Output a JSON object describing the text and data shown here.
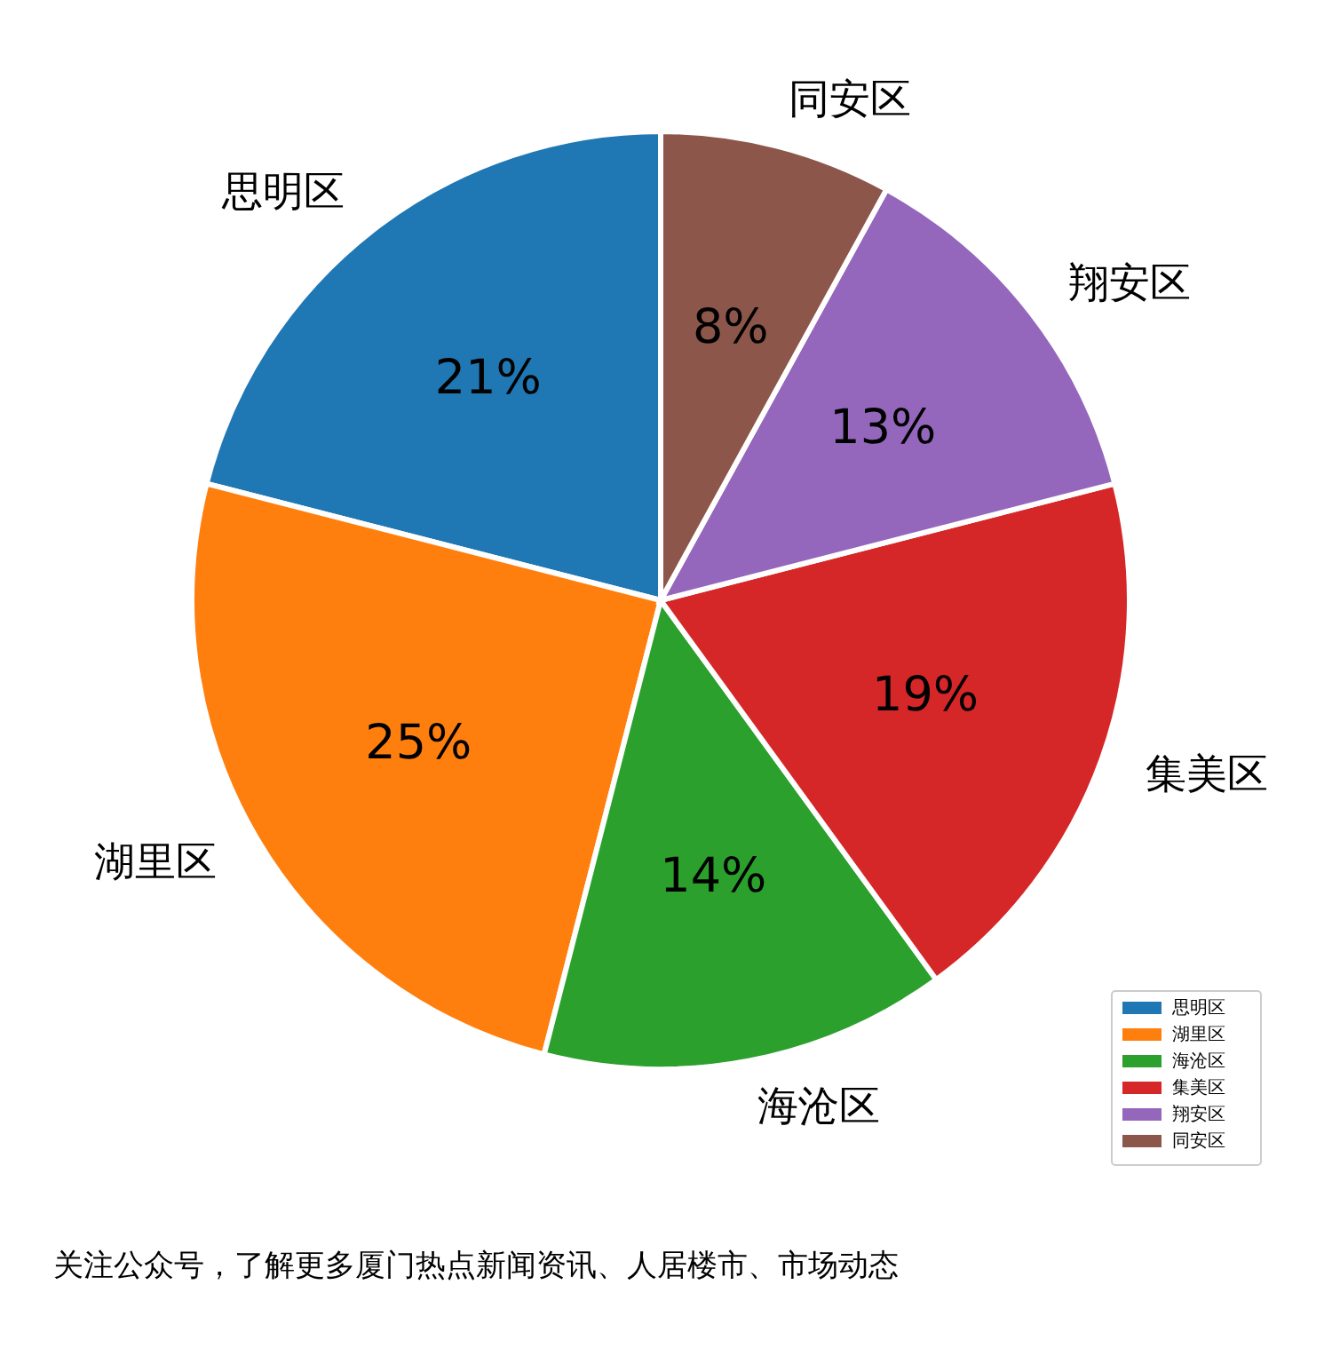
{
  "chart_data": {
    "type": "pie",
    "categories": [
      "思明区",
      "湖里区",
      "海沧区",
      "集美区",
      "翔安区",
      "同安区"
    ],
    "values": [
      21,
      25,
      14,
      19,
      13,
      8
    ],
    "colors": [
      "#1f77b4",
      "#ff7f0e",
      "#2ca02c",
      "#d62728",
      "#9467bd",
      "#8c564b"
    ],
    "value_labels": [
      "21%",
      "25%",
      "14%",
      "19%",
      "13%",
      "8%"
    ],
    "legend": "bottom right",
    "annotations": [
      "关注公众号，了解更多厦门热点新闻资讯、人居楼市、市场动态"
    ]
  }
}
